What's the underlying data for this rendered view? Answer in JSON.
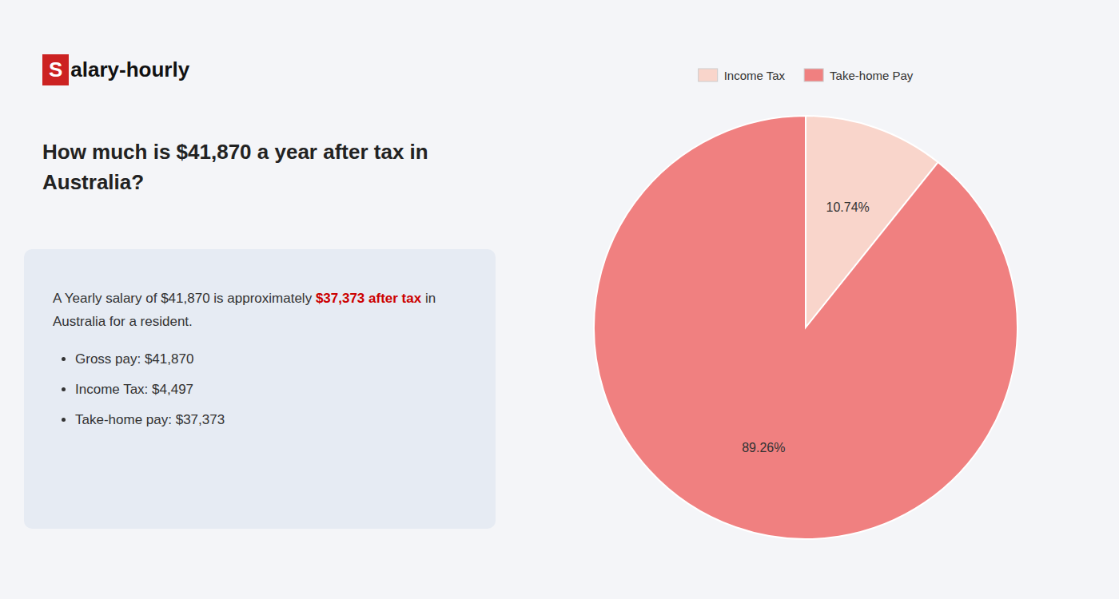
{
  "chart_data": {
    "type": "pie",
    "title": "How much is $41,870 a year after tax in Australia?",
    "categories": [
      "Income Tax",
      "Take-home Pay"
    ],
    "values": [
      10.74,
      89.26
    ],
    "value_labels": [
      "10.74%",
      "89.26%"
    ],
    "colors": [
      "#f9d5cb",
      "#f08080"
    ],
    "data_labels": true,
    "legend": "top",
    "annotations": [
      {
        "text": "S",
        "color": "#cc2222"
      },
      {
        "text": "alary-hourly"
      },
      {
        "text": "A Yearly salary of $41,870 is approximately "
      },
      {
        "text": "$37,373 after tax",
        "color": "#cc0000"
      },
      {
        "text": " in"
      },
      {
        "text": "Australia for a resident."
      },
      {
        "text": "Gross pay: $41,870"
      },
      {
        "text": "Income Tax: $4,497"
      },
      {
        "text": "Take-home pay: $37,373"
      }
    ]
  }
}
